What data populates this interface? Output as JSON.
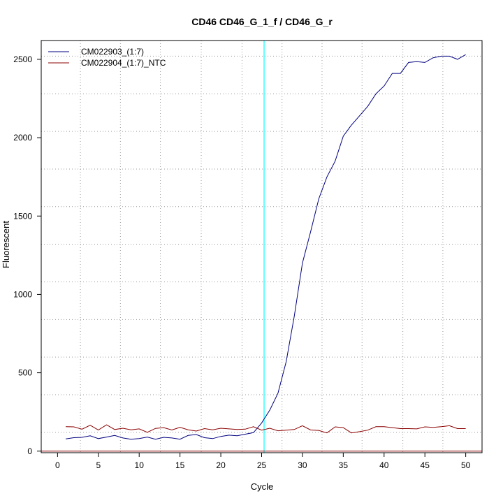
{
  "chart_data": {
    "type": "line",
    "title": "CD46  CD46_G_1_f / CD46_G_r",
    "xlabel": "Cycle",
    "ylabel": "Fluorescent",
    "xlim": [
      -2,
      52
    ],
    "ylim": [
      -10,
      2620
    ],
    "xticks": [
      0,
      5,
      10,
      15,
      20,
      25,
      30,
      35,
      40,
      45,
      50
    ],
    "yticks": [
      0,
      500,
      1000,
      1500,
      2000,
      2500
    ],
    "grid": "dotted",
    "x_gridlines": [
      2.8,
      7.7,
      12.6,
      17.6,
      22.6,
      27.5,
      32.4,
      37.3,
      42.3,
      47.2
    ],
    "y_gridlines": [
      120,
      360,
      600,
      840,
      1080,
      1320,
      1560,
      1800,
      2040,
      2280,
      2520
    ],
    "threshold_cycle": 25.3,
    "threshold_color": "#00ffff",
    "baseline_value": 0,
    "baseline_color": "#8b0000",
    "legend_position": "top-left",
    "x": [
      1,
      2,
      3,
      4,
      5,
      6,
      7,
      8,
      9,
      10,
      11,
      12,
      13,
      14,
      15,
      16,
      17,
      18,
      19,
      20,
      21,
      22,
      23,
      24,
      25,
      26,
      27,
      28,
      29,
      30,
      31,
      32,
      33,
      34,
      35,
      36,
      37,
      38,
      39,
      40,
      41,
      42,
      43,
      44,
      45,
      46,
      47,
      48,
      49,
      50
    ],
    "series": [
      {
        "name": "CM022903_(1:7)",
        "color": "#000080",
        "values": [
          78,
          86,
          88,
          98,
          80,
          90,
          100,
          84,
          76,
          80,
          90,
          76,
          88,
          84,
          76,
          100,
          106,
          86,
          80,
          94,
          102,
          98,
          108,
          118,
          180,
          262,
          370,
          570,
          860,
          1200,
          1400,
          1610,
          1750,
          1850,
          2010,
          2080,
          2140,
          2200,
          2280,
          2330,
          2410,
          2410,
          2480,
          2485,
          2480,
          2510,
          2520,
          2520,
          2500,
          2530
        ]
      },
      {
        "name": "CM022904_(1:7)_NTC",
        "color": "#8b0000",
        "values": [
          156,
          155,
          140,
          165,
          135,
          168,
          138,
          146,
          136,
          142,
          120,
          145,
          150,
          135,
          152,
          136,
          128,
          144,
          136,
          146,
          142,
          138,
          140,
          156,
          134,
          146,
          130,
          134,
          138,
          162,
          135,
          132,
          116,
          155,
          150,
          116,
          124,
          134,
          156,
          156,
          150,
          144,
          144,
          142,
          155,
          152,
          156,
          162,
          144,
          144
        ]
      }
    ]
  }
}
